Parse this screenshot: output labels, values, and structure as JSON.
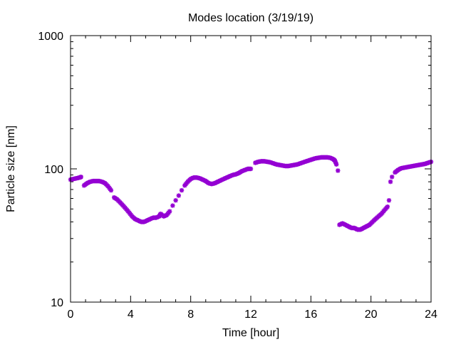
{
  "chart_data": {
    "type": "scatter",
    "title": "Modes location (3/19/19)",
    "xlabel": "Time [hour]",
    "ylabel": "Particle size [nm]",
    "xlim": [
      0,
      24
    ],
    "ylim": [
      10,
      1000
    ],
    "yscale": "log",
    "grid": false,
    "legend": "none",
    "x_ticks": [
      0,
      4,
      8,
      12,
      16,
      20,
      24
    ],
    "x_tick_labels": [
      "0",
      "4",
      "8",
      "12",
      "16",
      "20",
      "24"
    ],
    "y_ticks": [
      10,
      100,
      1000
    ],
    "y_tick_labels": [
      "10",
      "100",
      "1000"
    ],
    "marker_color": "#9400d3",
    "series": [
      {
        "x": [
          0.0,
          0.2,
          0.4,
          0.6,
          0.7,
          0.9,
          1.1,
          1.3,
          1.5,
          1.7,
          1.9,
          2.1,
          2.3,
          2.5,
          2.7,
          2.9,
          3.1,
          3.3,
          3.5,
          3.7,
          3.9,
          4.1,
          4.3,
          4.5,
          4.7,
          4.9,
          5.1,
          5.3,
          5.5,
          5.7,
          5.9,
          6.0,
          6.2,
          6.4,
          6.6,
          6.8,
          7.0,
          7.2,
          7.4,
          7.6,
          7.8,
          8.0,
          8.2,
          8.4,
          8.6,
          8.8,
          9.0,
          9.2,
          9.4,
          9.6,
          9.8,
          10.0,
          10.2,
          10.4,
          10.6,
          10.8,
          11.0,
          11.2,
          11.4,
          11.6,
          11.8,
          12.0,
          12.3,
          12.5,
          12.7,
          12.9,
          13.1,
          13.3,
          13.5,
          13.7,
          13.9,
          14.1,
          14.3,
          14.5,
          14.7,
          14.9,
          15.1,
          15.3,
          15.5,
          15.7,
          15.9,
          16.1,
          16.3,
          16.5,
          16.7,
          16.9,
          17.1,
          17.3,
          17.5,
          17.6,
          17.7,
          17.8
        ],
        "y": [
          83,
          84,
          85,
          86,
          87,
          75,
          78,
          80,
          81,
          81,
          81,
          80,
          78,
          74,
          69,
          61,
          59,
          56,
          53,
          50,
          47,
          44,
          42,
          41,
          40,
          40,
          41,
          42,
          43,
          43,
          44,
          46,
          44,
          45,
          48,
          53,
          58,
          63,
          69,
          75,
          80,
          84,
          86,
          86,
          85,
          83,
          81,
          78,
          77,
          78,
          80,
          82,
          84,
          86,
          88,
          90,
          91,
          93,
          96,
          98,
          100,
          100,
          111,
          113,
          114,
          114,
          113,
          112,
          110,
          108,
          107,
          106,
          105,
          105,
          106,
          107,
          108,
          110,
          112,
          114,
          116,
          118,
          120,
          121,
          122,
          122,
          122,
          121,
          118,
          115,
          108,
          97
        ]
      },
      {
        "x": [
          17.9,
          18.1,
          18.3,
          18.5,
          18.7,
          18.9,
          19.1,
          19.3,
          19.5,
          19.7,
          19.9,
          20.1,
          20.3,
          20.5,
          20.7,
          20.9,
          21.1,
          21.2,
          21.3,
          21.4,
          21.6,
          21.8,
          22.0,
          22.2,
          22.4,
          22.6,
          22.8,
          23.0,
          23.2,
          23.4,
          23.6,
          23.8,
          24.0
        ],
        "y": [
          38,
          39,
          38,
          37,
          36,
          36,
          35,
          35,
          36,
          37,
          38,
          40,
          42,
          44,
          46,
          49,
          52,
          58,
          80,
          87,
          94,
          98,
          101,
          102,
          103,
          104,
          105,
          106,
          107,
          108,
          109,
          111,
          113
        ]
      }
    ]
  }
}
